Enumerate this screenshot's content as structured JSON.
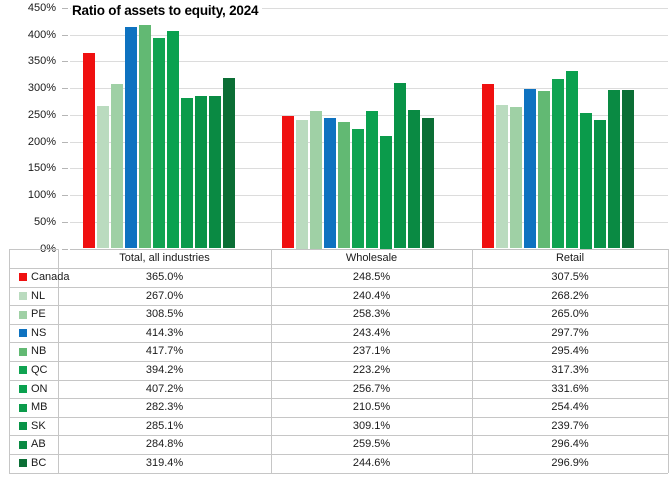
{
  "chart_data": {
    "type": "bar",
    "title": "Ratio of assets to equity, 2024",
    "categories": [
      "Total, all industries",
      "Wholesale",
      "Retail"
    ],
    "series": [
      {
        "name": "Canada",
        "color": "#ef1010",
        "values": [
          365.0,
          248.5,
          307.5
        ]
      },
      {
        "name": "NL",
        "color": "#badbbf",
        "values": [
          267.0,
          240.4,
          268.2
        ]
      },
      {
        "name": "PE",
        "color": "#9fd0a5",
        "values": [
          308.5,
          258.3,
          265.0
        ]
      },
      {
        "name": "NS",
        "color": "#0e72c0",
        "values": [
          414.3,
          243.4,
          297.7
        ]
      },
      {
        "name": "NB",
        "color": "#62b973",
        "values": [
          417.7,
          237.1,
          295.4
        ]
      },
      {
        "name": "QC",
        "color": "#10a351",
        "values": [
          394.2,
          223.2,
          317.3
        ]
      },
      {
        "name": "ON",
        "color": "#0aa14f",
        "values": [
          407.2,
          256.7,
          331.6
        ]
      },
      {
        "name": "MB",
        "color": "#0b9b4b",
        "values": [
          282.3,
          210.5,
          254.4
        ]
      },
      {
        "name": "SK",
        "color": "#089347",
        "values": [
          285.1,
          309.1,
          239.7
        ]
      },
      {
        "name": "AB",
        "color": "#0a8a43",
        "values": [
          284.8,
          259.5,
          296.4
        ]
      },
      {
        "name": "BC",
        "color": "#0b6e35",
        "values": [
          319.4,
          244.6,
          296.9
        ]
      }
    ],
    "ylim": [
      0,
      450
    ],
    "ytick_step": 50,
    "ytick_suffix": "%",
    "value_suffix": "%",
    "value_decimals": 1,
    "grid": true,
    "legend_position": "left-column-of-data-table",
    "colors": {
      "gridline": "#dcdcdc",
      "table_border": "#c6c6c6",
      "text": "#1a1a1a"
    }
  }
}
